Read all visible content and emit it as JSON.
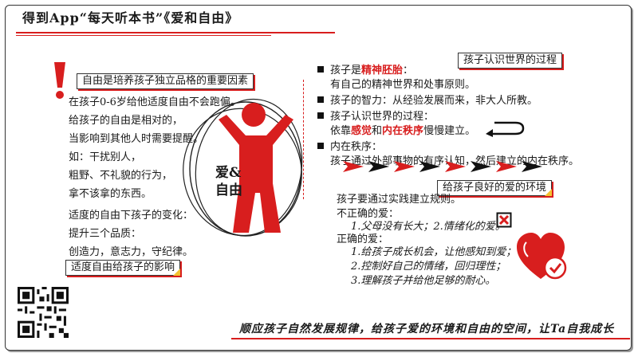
{
  "header": {
    "title": "得到App“每天听本书”《爱和自由》"
  },
  "left": {
    "tag_top": "自由是培养孩子独立品格的重要因素",
    "lines_top": [
      "在孩子0-6岁给他适度自由不会跑偏。",
      "给孩子的自由是相对的，",
      "当影响到其他人时需要提醒。",
      "如：干扰别人，",
      "粗野、不礼貌的行为，",
      "拿不该拿的东西。"
    ],
    "lines_bottom": [
      "适度的自由下孩子的变化：",
      "提升三个品质：",
      "创造力，意志力，守纪律。"
    ],
    "tag_bottom": "适度自由给孩子的影响"
  },
  "center": {
    "label_line1": "爱&",
    "label_line2": "自由"
  },
  "right": {
    "tag_top": "孩子认识世界的过程",
    "b1_prefix": "孩子是",
    "b1_highlight": "精神胚胎",
    "b1_suffix": "：",
    "b1_line2": "有自己的精神世界和处事原则。",
    "b2": "孩子的智力：从经验发展而来，非大人所教。",
    "b3": "孩子认识世界的过程：",
    "b3_l2_prefix": "依靠",
    "b3_l2_h1": "感觉",
    "b3_l2_mid": "和",
    "b3_l2_h2": "内在秩序",
    "b3_l2_suffix": "慢慢建立。",
    "b4": "内在秩序：",
    "b4_line2": "孩子通过外部事物的有序认知，然后建立的内在秩序。",
    "tag_mid": "给孩子良好的爱的环境",
    "env_line1": "孩子要通过实践建立规则。",
    "wrong_title": "不正确的爱：",
    "wrong_items": "1.父母没有长大；2.情绪化的爱。",
    "right_title": "正确的爱：",
    "right_items": [
      "1.给孩子成长机会，让他感知到爱；",
      "2.控制好自己的情绪，回归理性；",
      "3.理解孩子并给他足够的耐心。"
    ]
  },
  "footer": {
    "banner": "顺应孩子自然发展规律，给孩子爱的环境和自由的空间，让Ta自我成长"
  },
  "colors": {
    "accent": "#d81e1e",
    "ink": "#1a1a1a",
    "corner": "#f2c230"
  },
  "icons": [
    "exclamation-icon",
    "person-icon",
    "return-arrow-icon",
    "x-box-icon",
    "heart-check-icon",
    "qr-code-icon"
  ]
}
